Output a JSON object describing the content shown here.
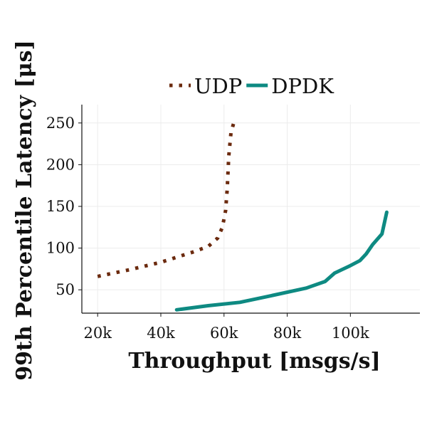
{
  "chart_data": {
    "type": "line",
    "title": "",
    "xlabel": "Throughput [msgs/s]",
    "ylabel": "99th Percentile Latency [μs]",
    "xlim": [
      15000,
      122000
    ],
    "ylim": [
      22,
      272
    ],
    "grid": true,
    "legend_position": "top",
    "x_ticks": [
      {
        "value": 20000,
        "label": "20k"
      },
      {
        "value": 40000,
        "label": "40k"
      },
      {
        "value": 60000,
        "label": "60k"
      },
      {
        "value": 80000,
        "label": "80k"
      },
      {
        "value": 100000,
        "label": "100k"
      }
    ],
    "y_ticks": [
      {
        "value": 50,
        "label": "50"
      },
      {
        "value": 100,
        "label": "100"
      },
      {
        "value": 150,
        "label": "150"
      },
      {
        "value": 200,
        "label": "200"
      },
      {
        "value": 250,
        "label": "250"
      }
    ],
    "series": [
      {
        "name": "UDP",
        "color": "#6b2a0e",
        "style": "dotted",
        "points": [
          [
            20000,
            66
          ],
          [
            30000,
            74
          ],
          [
            40000,
            83
          ],
          [
            50000,
            95
          ],
          [
            55000,
            102
          ],
          [
            58000,
            112
          ],
          [
            59500,
            125
          ],
          [
            60500,
            145
          ],
          [
            61000,
            170
          ],
          [
            61500,
            210
          ],
          [
            62200,
            238
          ],
          [
            63500,
            256
          ]
        ]
      },
      {
        "name": "DPDK",
        "color": "#0e8a82",
        "style": "solid",
        "points": [
          [
            45000,
            26
          ],
          [
            55000,
            31
          ],
          [
            65000,
            35
          ],
          [
            75000,
            43
          ],
          [
            86000,
            52
          ],
          [
            92000,
            60
          ],
          [
            95000,
            70
          ],
          [
            100000,
            79
          ],
          [
            103000,
            85
          ],
          [
            105000,
            93
          ],
          [
            107000,
            104
          ],
          [
            110000,
            117
          ],
          [
            111500,
            143
          ]
        ]
      }
    ]
  }
}
